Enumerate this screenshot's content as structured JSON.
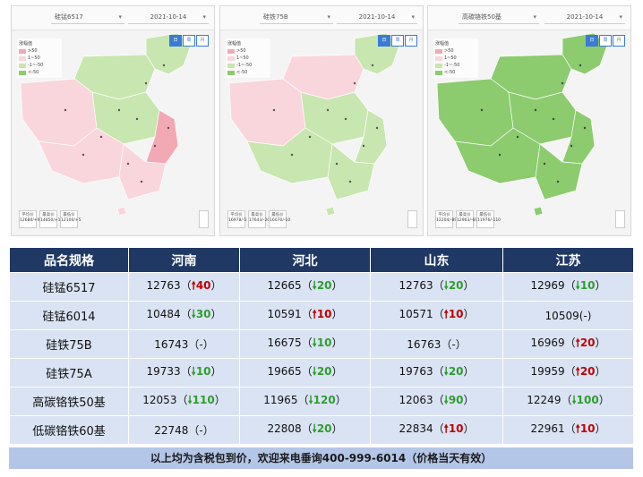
{
  "maps": [
    {
      "product": "硅锰6517",
      "date": "2021-10-14",
      "legend_title": "涨幅值",
      "legend": [
        ">50",
        "1~50",
        "-1~-50",
        "<-50"
      ],
      "tabs": [
        "日",
        "周",
        "月"
      ],
      "stats": [
        {
          "label": "平均价",
          "value": "12680/+9"
        },
        {
          "label": "最高价",
          "value": "14850/+10"
        },
        {
          "label": "最低价",
          "value": "12100/+5"
        }
      ],
      "legend_colors": [
        "#f2a9b3",
        "#f9d6dc",
        "#c8e6b0",
        "#8ccb6e"
      ]
    },
    {
      "product": "硅铁75B",
      "date": "2021-10-14",
      "legend_title": "涨幅值",
      "legend": [
        ">50",
        "1~50",
        "-1~-50",
        "<-50"
      ],
      "tabs": [
        "日",
        "周",
        "月"
      ],
      "stats": [
        {
          "label": "平均价",
          "value": "16978/-5"
        },
        {
          "label": "最高价",
          "value": "17643/-20"
        },
        {
          "label": "最低价",
          "value": "16070/-10"
        }
      ]
    },
    {
      "product": "高碳铬铁50基",
      "date": "2021-10-14",
      "legend_title": "涨幅值",
      "legend": [
        ">50",
        "1~50",
        "-1~-50",
        "<-50"
      ],
      "tabs": [
        "日",
        "周",
        "月"
      ],
      "stats": [
        {
          "label": "平均价",
          "value": "12204/-89"
        },
        {
          "label": "最高价",
          "value": "12963/-60"
        },
        {
          "label": "最低价",
          "value": "11976/-110"
        }
      ]
    }
  ],
  "table": {
    "headers": [
      "品名规格",
      "河南",
      "河北",
      "山东",
      "江苏"
    ],
    "rows": [
      {
        "name": "硅锰6517",
        "cells": [
          {
            "price": "12763",
            "dir": "up",
            "arrow": "🠕",
            "chg": "40",
            "style": "paren"
          },
          {
            "price": "12665",
            "dir": "down",
            "arrow": "🠗",
            "chg": "20",
            "style": "paren"
          },
          {
            "price": "12763",
            "dir": "down",
            "arrow": "🠗",
            "chg": "20",
            "style": "paren"
          },
          {
            "price": "12969",
            "dir": "down",
            "arrow": "🠗",
            "chg": "10",
            "style": "paren"
          }
        ]
      },
      {
        "name": "硅锰6014",
        "cells": [
          {
            "price": "10484",
            "dir": "down",
            "arrow": "🠗",
            "chg": "30",
            "style": "paren"
          },
          {
            "price": "10591",
            "dir": "up",
            "arrow": "🠕",
            "chg": "10",
            "style": "paren"
          },
          {
            "price": "10571",
            "dir": "up",
            "arrow": "🠕",
            "chg": "10",
            "style": "paren"
          },
          {
            "price": "10509",
            "dir": "eq",
            "arrow": "",
            "chg": "-",
            "style": "plain"
          }
        ]
      },
      {
        "name": "硅铁75B",
        "cells": [
          {
            "price": "16743",
            "dir": "eq",
            "arrow": "",
            "chg": "-",
            "style": "paren"
          },
          {
            "price": "16675",
            "dir": "down",
            "arrow": "🠗",
            "chg": "10",
            "style": "paren"
          },
          {
            "price": "16763",
            "dir": "eq",
            "arrow": "",
            "chg": "-",
            "style": "paren"
          },
          {
            "price": "16969",
            "dir": "up",
            "arrow": "🠕",
            "chg": "20",
            "style": "paren"
          }
        ]
      },
      {
        "name": "硅铁75A",
        "cells": [
          {
            "price": "19733",
            "dir": "down",
            "arrow": "🠗",
            "chg": "10",
            "style": "paren"
          },
          {
            "price": "19665",
            "dir": "down",
            "arrow": "🠗",
            "chg": "20",
            "style": "paren"
          },
          {
            "price": "19763",
            "dir": "down",
            "arrow": "🠗",
            "chg": "20",
            "style": "paren"
          },
          {
            "price": "19959",
            "dir": "up",
            "arrow": "🠕",
            "chg": "20",
            "style": "paren"
          }
        ]
      },
      {
        "name": "高碳铬铁50基",
        "cells": [
          {
            "price": "12053",
            "dir": "down",
            "arrow": "🠗",
            "chg": "110",
            "style": "paren"
          },
          {
            "price": "11965",
            "dir": "down",
            "arrow": "🠗",
            "chg": "120",
            "style": "paren"
          },
          {
            "price": "12063",
            "dir": "down",
            "arrow": "🠗",
            "chg": "90",
            "style": "paren"
          },
          {
            "price": "12249",
            "dir": "down",
            "arrow": "🠗",
            "chg": "100",
            "style": "paren"
          }
        ]
      },
      {
        "name": "低碳铬铁60基",
        "cells": [
          {
            "price": "22748",
            "dir": "eq",
            "arrow": "",
            "chg": "-",
            "style": "paren"
          },
          {
            "price": "22808",
            "dir": "down",
            "arrow": "🠗",
            "chg": "20",
            "style": "paren"
          },
          {
            "price": "22834",
            "dir": "up",
            "arrow": "🠕",
            "chg": "10",
            "style": "paren"
          },
          {
            "price": "22961",
            "dir": "up",
            "arrow": "🠕",
            "chg": "10",
            "style": "paren"
          }
        ]
      }
    ],
    "footer": "以上均为含税包到价，欢迎来电垂询400-999-6014（价格当天有效）"
  }
}
